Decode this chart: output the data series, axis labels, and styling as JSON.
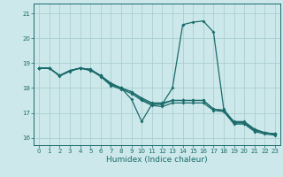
{
  "xlabel": "Humidex (Indice chaleur)",
  "xlim": [
    -0.5,
    23.5
  ],
  "ylim": [
    15.7,
    21.4
  ],
  "yticks": [
    16,
    17,
    18,
    19,
    20,
    21
  ],
  "xticks": [
    0,
    1,
    2,
    3,
    4,
    5,
    6,
    7,
    8,
    9,
    10,
    11,
    12,
    13,
    14,
    15,
    16,
    17,
    18,
    19,
    20,
    21,
    22,
    23
  ],
  "bg_color": "#cde8ea",
  "grid_color": "#aacfd2",
  "line_color": "#1a6b6b",
  "line1_x": [
    0,
    1,
    2,
    3,
    4,
    5,
    6,
    7,
    8,
    9,
    10,
    11,
    12,
    13,
    14,
    15,
    16,
    17,
    18,
    19,
    20,
    21,
    22,
    23
  ],
  "line1_y": [
    18.8,
    18.8,
    18.5,
    18.7,
    18.8,
    18.7,
    18.5,
    18.2,
    18.0,
    17.55,
    16.65,
    17.35,
    17.35,
    18.0,
    20.55,
    20.65,
    20.7,
    20.25,
    17.15,
    16.6,
    16.6,
    16.3,
    16.2,
    16.15
  ],
  "line2_x": [
    0,
    1,
    2,
    3,
    4,
    5,
    6,
    7,
    8,
    9,
    10,
    11,
    12,
    13,
    14,
    15,
    16,
    17,
    18,
    19,
    20,
    21,
    22,
    23
  ],
  "line2_y": [
    18.8,
    18.8,
    18.5,
    18.7,
    18.8,
    18.75,
    18.5,
    18.15,
    18.0,
    17.85,
    17.55,
    17.35,
    17.35,
    17.5,
    17.5,
    17.5,
    17.5,
    17.15,
    17.1,
    16.6,
    16.6,
    16.3,
    16.2,
    16.15
  ],
  "line3_x": [
    0,
    1,
    2,
    3,
    4,
    5,
    6,
    7,
    8,
    9,
    10,
    11,
    12,
    13,
    14,
    15,
    16,
    17,
    18,
    19,
    20,
    21,
    22,
    23
  ],
  "line3_y": [
    18.8,
    18.8,
    18.5,
    18.7,
    18.8,
    18.75,
    18.5,
    18.15,
    18.0,
    17.85,
    17.6,
    17.4,
    17.4,
    17.5,
    17.5,
    17.5,
    17.5,
    17.15,
    17.1,
    16.65,
    16.65,
    16.35,
    16.2,
    16.15
  ],
  "line4_x": [
    0,
    1,
    2,
    3,
    4,
    5,
    6,
    7,
    8,
    9,
    10,
    11,
    12,
    13,
    14,
    15,
    16,
    17,
    18,
    19,
    20,
    21,
    22,
    23
  ],
  "line4_y": [
    18.8,
    18.8,
    18.48,
    18.67,
    18.8,
    18.73,
    18.46,
    18.1,
    17.95,
    17.78,
    17.5,
    17.3,
    17.25,
    17.4,
    17.4,
    17.4,
    17.4,
    17.1,
    17.05,
    16.55,
    16.55,
    16.25,
    16.15,
    16.1
  ]
}
